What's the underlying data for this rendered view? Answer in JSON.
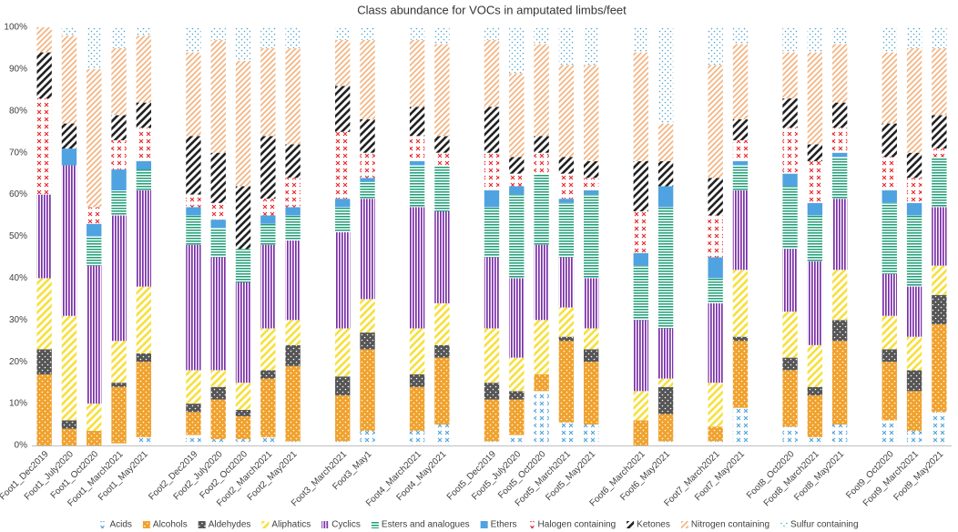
{
  "chart_data": {
    "type": "stacked_bar",
    "title": "Class abundance for VOCs in amputated limbs/feet",
    "categories": [
      "Foot1_Dec2019",
      "Foot1_July2020",
      "Foot1_Oct2020",
      "Foot1_March2021",
      "Foot1_May2021",
      null,
      "Foot2_Dec2019",
      "Foot2_July2020",
      "Foot2_Oct2020",
      "Foot2_March2021",
      "Foot2_May2021",
      null,
      "Foot3_March2021",
      "Foot3_May1",
      null,
      "Foot4_March2021",
      "Foot4_May2021",
      null,
      "Foot5_Dec2019",
      "Foot5_July2020",
      "Foot5_Oct2020",
      "Foot5_March2021",
      "Foot5_May2021",
      null,
      "Foot6_March2021",
      "Foot6_May2021",
      null,
      "Foot7_March2021",
      "Foot7_May2021",
      null,
      "Foot8_Oct2020",
      "Foot8_March2021",
      "Foot8_May2021",
      null,
      "Foot9_Oct2020",
      "Foot9_March2021",
      "Foot9_May2021"
    ],
    "series": [
      {
        "name": "Acids",
        "color": "#4fa3d9",
        "pattern": "cross",
        "values": [
          0,
          0,
          0,
          0.5,
          2,
          null,
          2.5,
          1.5,
          1.5,
          2,
          1,
          null,
          1,
          3.5,
          null,
          3.5,
          5,
          null,
          1,
          2.5,
          13,
          5.5,
          5,
          null,
          0,
          1,
          null,
          1,
          9,
          null,
          4.5,
          2,
          5,
          null,
          6,
          3.5,
          8
        ]
      },
      {
        "name": "Alcohols",
        "color": "#f0a22e",
        "pattern": "dots",
        "values": [
          17,
          4,
          3.5,
          13.5,
          18,
          null,
          5.5,
          9.5,
          5.5,
          14,
          18,
          null,
          11,
          19.5,
          null,
          10.5,
          16,
          null,
          10,
          8.5,
          4,
          19.5,
          15,
          null,
          6,
          6.5,
          null,
          3.5,
          16,
          null,
          13.5,
          10,
          20,
          null,
          14,
          9.5,
          21
        ]
      },
      {
        "name": "Aldehydes",
        "color": "#555555",
        "pattern": "dots",
        "values": [
          6,
          2,
          0,
          1,
          2,
          null,
          2,
          3,
          1.5,
          2,
          5,
          null,
          4.5,
          4,
          null,
          3,
          3,
          null,
          4,
          2,
          0,
          1,
          3,
          null,
          0,
          6.5,
          null,
          0,
          1,
          null,
          3,
          2,
          5,
          null,
          3,
          5,
          7
        ]
      },
      {
        "name": "Aliphatics",
        "color": "#f7e03c",
        "pattern": "diagonal-wide",
        "values": [
          17,
          25,
          6.5,
          10,
          16,
          null,
          8,
          4,
          6.5,
          10,
          6,
          null,
          11.5,
          8,
          null,
          11,
          10,
          null,
          13,
          8,
          13,
          7,
          5,
          null,
          7,
          2,
          null,
          10.5,
          16,
          null,
          11,
          10,
          12,
          null,
          8,
          8,
          7
        ]
      },
      {
        "name": "Cyclics",
        "color": "#7a2fa8",
        "pattern": "vertical",
        "values": [
          20,
          36,
          33,
          30,
          23,
          null,
          30,
          27,
          24,
          20,
          19,
          null,
          23,
          24,
          null,
          29,
          22,
          null,
          17,
          19,
          18,
          12,
          12,
          null,
          17,
          12,
          null,
          19,
          19,
          null,
          15,
          20,
          17,
          null,
          10,
          12,
          14
        ]
      },
      {
        "name": "Esters and analogues",
        "color": "#1e9e76",
        "pattern": "horizontal",
        "values": [
          0,
          0,
          7,
          6,
          5,
          null,
          7,
          7,
          8,
          5,
          6,
          null,
          6,
          4,
          null,
          10,
          11,
          null,
          12,
          20,
          17,
          13,
          20,
          null,
          13,
          29,
          null,
          6,
          6,
          null,
          15,
          11,
          10,
          null,
          17,
          17,
          12
        ]
      },
      {
        "name": "Ethers",
        "color": "#4fa3e0",
        "pattern": "solid",
        "values": [
          0,
          4,
          3,
          5,
          2,
          null,
          2,
          2,
          0,
          2,
          2,
          null,
          2,
          1,
          null,
          1,
          0,
          null,
          4,
          2,
          0,
          1,
          1,
          null,
          3,
          5,
          null,
          5,
          1,
          null,
          3,
          3,
          1,
          null,
          3,
          3,
          0
        ]
      },
      {
        "name": "Halogen containing",
        "color": "#e8262a",
        "pattern": "cross",
        "values": [
          23,
          0,
          4,
          7,
          8,
          null,
          3,
          4,
          0,
          4,
          7,
          null,
          16,
          6,
          null,
          6,
          3,
          null,
          9,
          3,
          5,
          6,
          3,
          null,
          10,
          0,
          null,
          10,
          5,
          null,
          11,
          10,
          6,
          null,
          8,
          6,
          2
        ]
      },
      {
        "name": "Ketones",
        "color": "#222222",
        "pattern": "diagonal-wide",
        "values": [
          11,
          6,
          0,
          6,
          6,
          null,
          14,
          12,
          15,
          15,
          8,
          null,
          11,
          8,
          null,
          7,
          4,
          null,
          11,
          4,
          4,
          4,
          4,
          null,
          12,
          6,
          null,
          9,
          5,
          null,
          7,
          4,
          6,
          null,
          8,
          6,
          8
        ]
      },
      {
        "name": "Nitrogen containing",
        "color": "#f3b07a",
        "pattern": "diagonal-thin",
        "values": [
          6,
          21,
          33,
          16,
          16,
          null,
          20,
          27,
          30,
          21,
          23,
          null,
          11,
          19,
          null,
          16,
          22,
          null,
          16,
          20,
          22,
          22,
          23,
          null,
          26,
          9,
          null,
          27,
          18,
          null,
          11,
          22,
          14,
          null,
          17,
          25,
          16
        ]
      },
      {
        "name": "Sulfur containing",
        "color": "#4fa3c9",
        "pattern": "sparse-dots",
        "values": [
          0,
          2,
          10,
          5,
          2,
          null,
          6,
          3,
          8,
          5,
          5,
          null,
          3,
          3,
          null,
          3,
          4,
          null,
          3,
          11,
          4,
          9,
          9,
          null,
          6,
          23,
          null,
          9,
          4,
          null,
          6,
          6,
          4,
          null,
          6,
          5,
          5
        ]
      }
    ],
    "ylim": [
      0,
      100
    ],
    "yticks": [
      {
        "value": 0,
        "label": "0%"
      },
      {
        "value": 10,
        "label": "10%"
      },
      {
        "value": 20,
        "label": "20%"
      },
      {
        "value": 30,
        "label": "30%"
      },
      {
        "value": 40,
        "label": "40%"
      },
      {
        "value": 50,
        "label": "50%"
      },
      {
        "value": 60,
        "label": "60%"
      },
      {
        "value": 70,
        "label": "70%"
      },
      {
        "value": 80,
        "label": "80%"
      },
      {
        "value": 90,
        "label": "90%"
      },
      {
        "value": 100,
        "label": "100%"
      }
    ],
    "grid": false,
    "legend": "bottom"
  }
}
